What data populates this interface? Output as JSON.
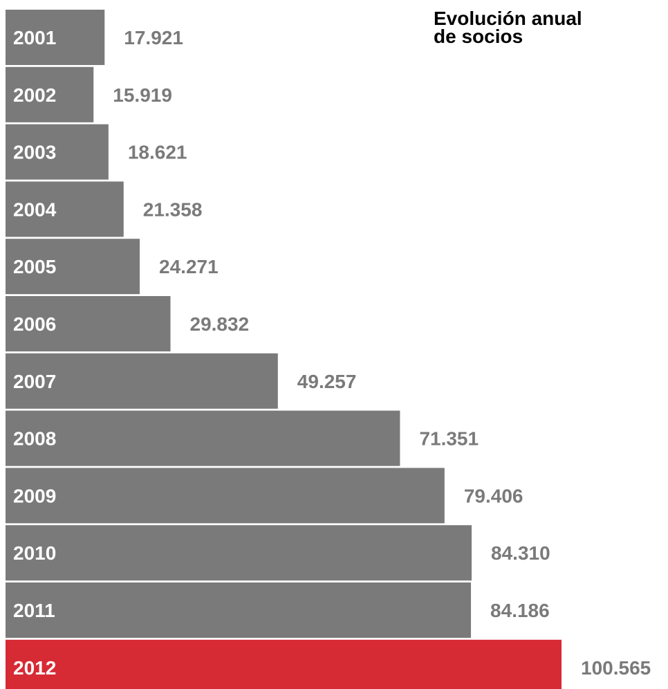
{
  "chart_data": {
    "type": "bar",
    "orientation": "horizontal",
    "title_lines": [
      "Evolución anual",
      "de socios"
    ],
    "categories": [
      "2001",
      "2002",
      "2003",
      "2004",
      "2005",
      "2006",
      "2007",
      "2008",
      "2009",
      "2010",
      "2011",
      "2012"
    ],
    "values": [
      17921,
      15919,
      18621,
      21358,
      24271,
      29832,
      49257,
      71351,
      79406,
      84310,
      84186,
      100565
    ],
    "value_labels": [
      "17.921",
      "15.919",
      "18.621",
      "21.358",
      "24.271",
      "29.832",
      "49.257",
      "71.351",
      "79.406",
      "84.310",
      "84.186",
      "100.565"
    ],
    "highlight_category": "2012",
    "grid": false,
    "legend": "none"
  },
  "colors": {
    "bar": "#7a7a7b",
    "highlight_bar": "#d62a35",
    "category_label": "#ffffff",
    "value_label": "#7a7a7b",
    "title": "#000000"
  }
}
